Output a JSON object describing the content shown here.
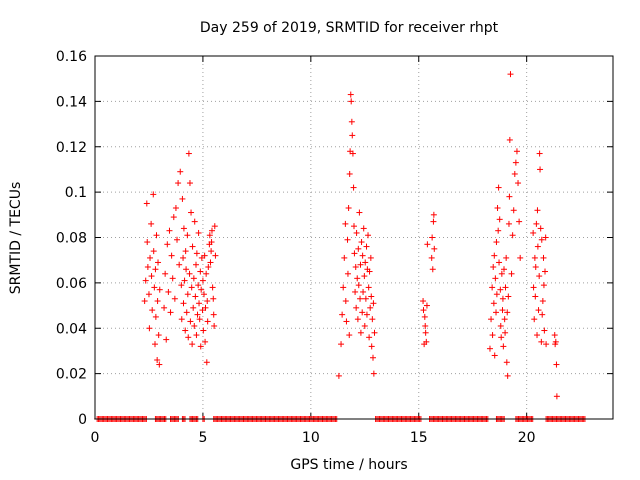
{
  "chart_data": {
    "type": "scatter",
    "title": "Day 259 of 2019, SRMTID for receiver rhpt",
    "xlabel": "GPS time / hours",
    "ylabel": "SRMTID / TECUs",
    "xlim": [
      0,
      24
    ],
    "ylim": [
      0,
      0.16
    ],
    "xticks": [
      0,
      5,
      10,
      15,
      20
    ],
    "xtick_labels": [
      "0",
      "5",
      "10",
      "15",
      "20"
    ],
    "yticks": [
      0,
      0.02,
      0.04,
      0.06,
      0.08,
      0.1,
      0.12,
      0.14,
      0.16
    ],
    "ytick_labels": [
      "0",
      "0.02",
      "0.04",
      "0.06",
      "0.08",
      "0.1",
      "0.12",
      "0.14",
      "0.16"
    ],
    "grid": true,
    "marker": "plus",
    "color": "#ff0000",
    "series": [
      {
        "name": "SRMTID",
        "points": [
          [
            2.3,
            0.052
          ],
          [
            2.35,
            0.061
          ],
          [
            2.4,
            0.095
          ],
          [
            2.42,
            0.078
          ],
          [
            2.45,
            0.067
          ],
          [
            2.5,
            0.055
          ],
          [
            2.52,
            0.04
          ],
          [
            2.55,
            0.071
          ],
          [
            2.6,
            0.086
          ],
          [
            2.62,
            0.063
          ],
          [
            2.65,
            0.048
          ],
          [
            2.7,
            0.099
          ],
          [
            2.72,
            0.074
          ],
          [
            2.75,
            0.058
          ],
          [
            2.78,
            0.033
          ],
          [
            2.8,
            0.066
          ],
          [
            2.82,
            0.045
          ],
          [
            2.85,
            0.081
          ],
          [
            2.88,
            0.026
          ],
          [
            2.9,
            0.052
          ],
          [
            2.92,
            0.069
          ],
          [
            2.95,
            0.037
          ],
          [
            2.98,
            0.024
          ],
          [
            3.0,
            0.057
          ],
          [
            3.2,
            0.049
          ],
          [
            3.25,
            0.064
          ],
          [
            3.3,
            0.035
          ],
          [
            3.35,
            0.077
          ],
          [
            3.4,
            0.056
          ],
          [
            3.45,
            0.083
          ],
          [
            3.5,
            0.047
          ],
          [
            3.55,
            0.072
          ],
          [
            3.6,
            0.062
          ],
          [
            3.65,
            0.089
          ],
          [
            3.7,
            0.053
          ],
          [
            3.75,
            0.093
          ],
          [
            3.8,
            0.079
          ],
          [
            3.85,
            0.104
          ],
          [
            3.9,
            0.068
          ],
          [
            3.95,
            0.109
          ],
          [
            4.0,
            0.059
          ],
          [
            4.02,
            0.044
          ],
          [
            4.05,
            0.097
          ],
          [
            4.08,
            0.071
          ],
          [
            4.1,
            0.051
          ],
          [
            4.12,
            0.084
          ],
          [
            4.15,
            0.061
          ],
          [
            4.18,
            0.039
          ],
          [
            4.2,
            0.074
          ],
          [
            4.22,
            0.066
          ],
          [
            4.25,
            0.047
          ],
          [
            4.28,
            0.081
          ],
          [
            4.3,
            0.055
          ],
          [
            4.32,
            0.036
          ],
          [
            4.35,
            0.117
          ],
          [
            4.38,
            0.064
          ],
          [
            4.4,
            0.104
          ],
          [
            4.42,
            0.043
          ],
          [
            4.45,
            0.091
          ],
          [
            4.48,
            0.058
          ],
          [
            4.5,
            0.033
          ],
          [
            4.52,
            0.076
          ],
          [
            4.55,
            0.049
          ],
          [
            4.58,
            0.062
          ],
          [
            4.6,
            0.041
          ],
          [
            4.62,
            0.087
          ],
          [
            4.65,
            0.054
          ],
          [
            4.68,
            0.068
          ],
          [
            4.7,
            0.037
          ],
          [
            4.72,
            0.073
          ],
          [
            4.75,
            0.046
          ],
          [
            4.78,
            0.059
          ],
          [
            4.8,
            0.082
          ],
          [
            4.82,
            0.051
          ],
          [
            4.85,
            0.044
          ],
          [
            4.88,
            0.065
          ],
          [
            4.9,
            0.032
          ],
          [
            4.92,
            0.057
          ],
          [
            4.95,
            0.071
          ],
          [
            4.98,
            0.048
          ],
          [
            5.0,
            0.061
          ],
          [
            5.02,
            0.039
          ],
          [
            5.05,
            0.055
          ],
          [
            5.08,
            0.072
          ],
          [
            5.1,
            0.034
          ],
          [
            5.12,
            0.049
          ],
          [
            5.15,
            0.064
          ],
          [
            5.18,
            0.025
          ],
          [
            5.2,
            0.052
          ],
          [
            5.22,
            0.043
          ],
          [
            5.25,
            0.067
          ],
          [
            5.3,
            0.077
          ],
          [
            5.32,
            0.081
          ],
          [
            5.35,
            0.069
          ],
          [
            5.38,
            0.074
          ],
          [
            5.4,
            0.078
          ],
          [
            5.42,
            0.083
          ],
          [
            5.45,
            0.058
          ],
          [
            5.48,
            0.053
          ],
          [
            5.5,
            0.046
          ],
          [
            5.52,
            0.041
          ],
          [
            5.55,
            0.085
          ],
          [
            5.58,
            0.072
          ],
          [
            11.3,
            0.019
          ],
          [
            11.4,
            0.033
          ],
          [
            11.45,
            0.046
          ],
          [
            11.5,
            0.058
          ],
          [
            11.55,
            0.071
          ],
          [
            11.6,
            0.086
          ],
          [
            11.62,
            0.052
          ],
          [
            11.65,
            0.043
          ],
          [
            11.7,
            0.079
          ],
          [
            11.72,
            0.064
          ],
          [
            11.75,
            0.093
          ],
          [
            11.78,
            0.037
          ],
          [
            11.8,
            0.108
          ],
          [
            11.82,
            0.118
          ],
          [
            11.85,
            0.143
          ],
          [
            11.87,
            0.14
          ],
          [
            11.9,
            0.131
          ],
          [
            11.92,
            0.125
          ],
          [
            11.95,
            0.117
          ],
          [
            11.98,
            0.102
          ],
          [
            12.0,
            0.085
          ],
          [
            12.02,
            0.073
          ],
          [
            12.05,
            0.056
          ],
          [
            12.08,
            0.067
          ],
          [
            12.1,
            0.049
          ],
          [
            12.12,
            0.082
          ],
          [
            12.15,
            0.062
          ],
          [
            12.18,
            0.044
          ],
          [
            12.2,
            0.075
          ],
          [
            12.22,
            0.059
          ],
          [
            12.25,
            0.091
          ],
          [
            12.28,
            0.053
          ],
          [
            12.3,
            0.068
          ],
          [
            12.32,
            0.038
          ],
          [
            12.35,
            0.078
          ],
          [
            12.38,
            0.047
          ],
          [
            12.4,
            0.072
          ],
          [
            12.42,
            0.056
          ],
          [
            12.45,
            0.084
          ],
          [
            12.48,
            0.063
          ],
          [
            12.5,
            0.041
          ],
          [
            12.52,
            0.069
          ],
          [
            12.55,
            0.053
          ],
          [
            12.58,
            0.076
          ],
          [
            12.6,
            0.046
          ],
          [
            12.62,
            0.066
          ],
          [
            12.65,
            0.081
          ],
          [
            12.68,
            0.058
          ],
          [
            12.7,
            0.036
          ],
          [
            12.72,
            0.065
          ],
          [
            12.75,
            0.049
          ],
          [
            12.78,
            0.071
          ],
          [
            12.8,
            0.054
          ],
          [
            12.82,
            0.032
          ],
          [
            12.85,
            0.044
          ],
          [
            12.88,
            0.027
          ],
          [
            12.9,
            0.051
          ],
          [
            12.92,
            0.02
          ],
          [
            12.95,
            0.038
          ],
          [
            15.2,
            0.052
          ],
          [
            15.22,
            0.048
          ],
          [
            15.25,
            0.033
          ],
          [
            15.28,
            0.045
          ],
          [
            15.3,
            0.041
          ],
          [
            15.32,
            0.038
          ],
          [
            15.35,
            0.034
          ],
          [
            15.38,
            0.05
          ],
          [
            15.4,
            0.077
          ],
          [
            15.6,
            0.071
          ],
          [
            15.62,
            0.08
          ],
          [
            15.65,
            0.066
          ],
          [
            15.68,
            0.087
          ],
          [
            15.7,
            0.09
          ],
          [
            15.72,
            0.075
          ],
          [
            18.3,
            0.031
          ],
          [
            18.35,
            0.044
          ],
          [
            18.4,
            0.058
          ],
          [
            18.42,
            0.037
          ],
          [
            18.45,
            0.067
          ],
          [
            18.48,
            0.051
          ],
          [
            18.5,
            0.072
          ],
          [
            18.52,
            0.028
          ],
          [
            18.55,
            0.062
          ],
          [
            18.58,
            0.047
          ],
          [
            18.6,
            0.078
          ],
          [
            18.62,
            0.055
          ],
          [
            18.65,
            0.093
          ],
          [
            18.68,
            0.083
          ],
          [
            18.7,
            0.102
          ],
          [
            18.72,
            0.069
          ],
          [
            18.75,
            0.088
          ],
          [
            18.78,
            0.057
          ],
          [
            18.8,
            0.041
          ],
          [
            18.82,
            0.036
          ],
          [
            18.85,
            0.064
          ],
          [
            18.88,
            0.048
          ],
          [
            18.9,
            0.053
          ],
          [
            18.92,
            0.032
          ],
          [
            18.95,
            0.066
          ],
          [
            18.98,
            0.044
          ],
          [
            19.0,
            0.038
          ],
          [
            19.02,
            0.058
          ],
          [
            19.05,
            0.071
          ],
          [
            19.08,
            0.025
          ],
          [
            19.1,
            0.047
          ],
          [
            19.12,
            0.019
          ],
          [
            19.15,
            0.054
          ],
          [
            19.18,
            0.086
          ],
          [
            19.2,
            0.098
          ],
          [
            19.22,
            0.123
          ],
          [
            19.25,
            0.152
          ],
          [
            19.3,
            0.064
          ],
          [
            19.35,
            0.081
          ],
          [
            19.4,
            0.092
          ],
          [
            19.45,
            0.108
          ],
          [
            19.5,
            0.113
          ],
          [
            19.55,
            0.118
          ],
          [
            19.6,
            0.104
          ],
          [
            19.65,
            0.087
          ],
          [
            19.7,
            0.071
          ],
          [
            20.3,
            0.082
          ],
          [
            20.32,
            0.058
          ],
          [
            20.35,
            0.044
          ],
          [
            20.38,
            0.071
          ],
          [
            20.4,
            0.054
          ],
          [
            20.42,
            0.067
          ],
          [
            20.45,
            0.086
          ],
          [
            20.48,
            0.037
          ],
          [
            20.5,
            0.092
          ],
          [
            20.52,
            0.076
          ],
          [
            20.55,
            0.048
          ],
          [
            20.58,
            0.063
          ],
          [
            20.6,
            0.117
          ],
          [
            20.62,
            0.11
          ],
          [
            20.65,
            0.084
          ],
          [
            20.68,
            0.034
          ],
          [
            20.7,
            0.079
          ],
          [
            20.72,
            0.046
          ],
          [
            20.75,
            0.052
          ],
          [
            20.78,
            0.071
          ],
          [
            20.8,
            0.059
          ],
          [
            20.82,
            0.039
          ],
          [
            20.85,
            0.065
          ],
          [
            20.88,
            0.08
          ],
          [
            20.9,
            0.033
          ],
          [
            21.3,
            0.037
          ],
          [
            21.32,
            0.033
          ],
          [
            21.35,
            0.034
          ],
          [
            21.38,
            0.024
          ],
          [
            21.4,
            0.01
          ]
        ],
        "zero_intervals": [
          [
            0.1,
            2.4
          ],
          [
            2.8,
            3.3
          ],
          [
            3.5,
            3.9
          ],
          [
            4.05,
            4.2
          ],
          [
            4.4,
            4.8
          ],
          [
            5.0,
            5.1
          ],
          [
            5.5,
            11.2
          ],
          [
            13.0,
            15.1
          ],
          [
            15.5,
            18.2
          ],
          [
            18.6,
            19.0
          ],
          [
            19.5,
            20.3
          ],
          [
            20.9,
            22.7
          ]
        ]
      }
    ]
  }
}
